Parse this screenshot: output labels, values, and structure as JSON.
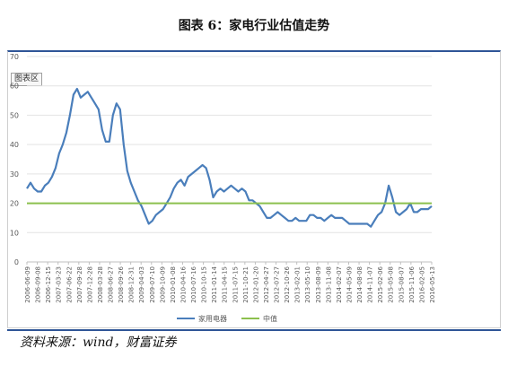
{
  "title": "图表 6：家电行业估值走势",
  "source": "资料来源：wind，财富证券",
  "chart_area_label": "图表区",
  "chart_data": {
    "type": "line",
    "title": "图表 6：家电行业估值走势",
    "xlabel": "",
    "ylabel": "",
    "ylim": [
      0,
      70
    ],
    "yticks": [
      0,
      10,
      20,
      30,
      40,
      50,
      60,
      70
    ],
    "grid": true,
    "legend_position": "bottom",
    "x_ticks": [
      "2006-06-09",
      "2006-09-08",
      "2006-12-15",
      "2007-03-23",
      "2007-06-22",
      "2007-09-28",
      "2007-12-28",
      "2008-03-28",
      "2008-06-27",
      "2008-09-26",
      "2008-12-31",
      "2009-04-03",
      "2009-07-10",
      "2009-10-09",
      "2010-01-08",
      "2010-04-16",
      "2010-07-16",
      "2010-10-15",
      "2011-01-14",
      "2011-04-15",
      "2011-07-15",
      "2011-10-21",
      "2012-01-20",
      "2012-04-27",
      "2012-07-27",
      "2012-10-26",
      "2013-02-01",
      "2013-05-10",
      "2013-08-09",
      "2013-11-08",
      "2014-02-07",
      "2014-05-09",
      "2014-08-08",
      "2014-11-07",
      "2015-02-06",
      "2015-05-08",
      "2015-08-07",
      "2015-11-06",
      "2016-02-05",
      "2016-05-13"
    ],
    "series": [
      {
        "name": "家用电器",
        "color": "#4a7ebb",
        "values": [
          25,
          27,
          25,
          24,
          24,
          26,
          27,
          29,
          32,
          37,
          40,
          44,
          50,
          57,
          59,
          56,
          57,
          58,
          56,
          54,
          52,
          45,
          41,
          41,
          50,
          54,
          52,
          40,
          31,
          27,
          24,
          21,
          19,
          16,
          13,
          14,
          16,
          17,
          18,
          20,
          22,
          25,
          27,
          28,
          26,
          29,
          30,
          31,
          32,
          33,
          32,
          28,
          22,
          24,
          25,
          24,
          25,
          26,
          25,
          24,
          25,
          24,
          21,
          21,
          20,
          19,
          17,
          15,
          15,
          16,
          17,
          16,
          15,
          14,
          14,
          15,
          14,
          14,
          14,
          16,
          16,
          15,
          15,
          14,
          15,
          16,
          15,
          15,
          15,
          14,
          13,
          13,
          13,
          13,
          13,
          13,
          12,
          14,
          16,
          17,
          20,
          26,
          22,
          17,
          16,
          17,
          18,
          20,
          17,
          17,
          18,
          18,
          18,
          19
        ]
      },
      {
        "name": "中值",
        "color": "#8cc04d",
        "values": [
          20,
          20
        ]
      }
    ]
  }
}
